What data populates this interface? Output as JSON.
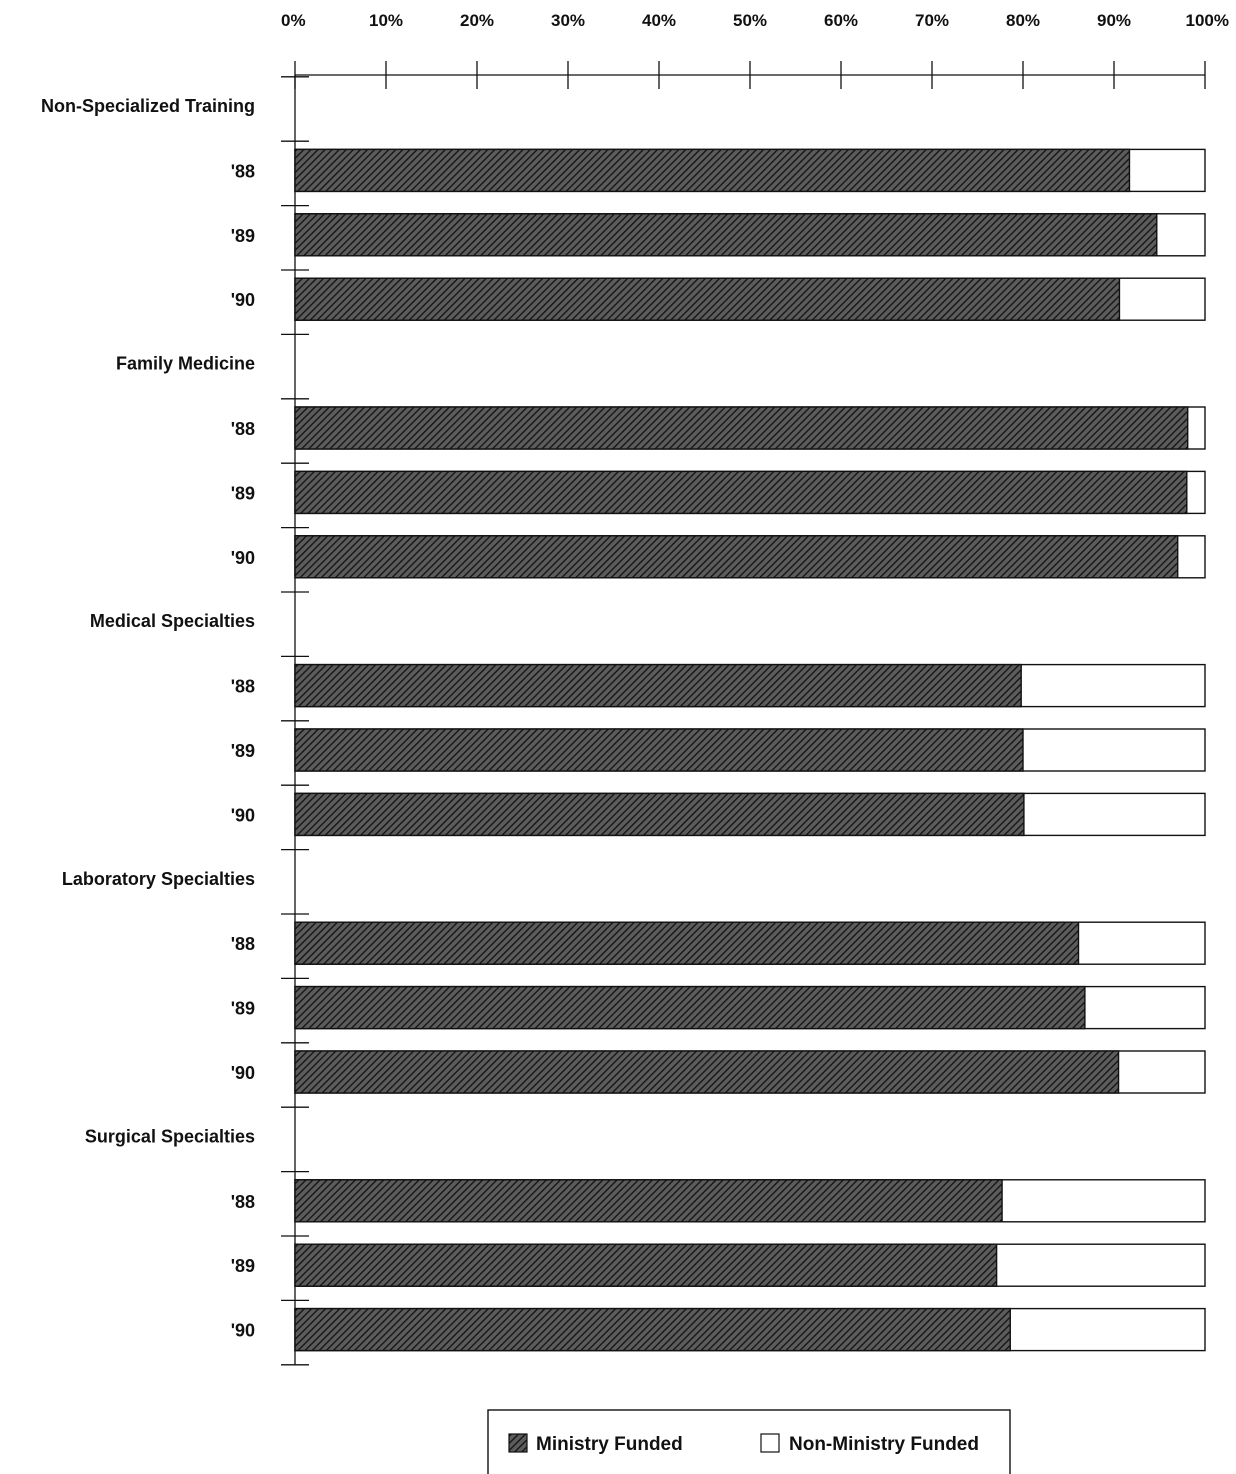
{
  "chart_data": {
    "type": "bar",
    "orientation": "horizontal",
    "stacked": true,
    "x_ticks": [
      "0%",
      "10%",
      "20%",
      "30%",
      "40%",
      "50%",
      "60%",
      "70%",
      "80%",
      "90%",
      "100%"
    ],
    "xlim": [
      0,
      100
    ],
    "grid": false,
    "legend_placement": "bottom",
    "groups": [
      {
        "name": "Non-Specialized Training",
        "years": [
          "'88",
          "'89",
          "'90"
        ],
        "ministry_funded": [
          91.7,
          94.7,
          90.6
        ]
      },
      {
        "name": "Family Medicine",
        "years": [
          "'88",
          "'89",
          "'90"
        ],
        "ministry_funded": [
          98.1,
          98.0,
          97.0
        ]
      },
      {
        "name": "Medical Specialties",
        "years": [
          "'88",
          "'89",
          "'90"
        ],
        "ministry_funded": [
          79.8,
          80.0,
          80.1
        ]
      },
      {
        "name": "Laboratory Specialties",
        "years": [
          "'88",
          "'89",
          "'90"
        ],
        "ministry_funded": [
          86.1,
          86.8,
          90.5
        ]
      },
      {
        "name": "Surgical Specialties",
        "years": [
          "'88",
          "'89",
          "'90"
        ],
        "ministry_funded": [
          77.7,
          77.1,
          78.6
        ]
      }
    ],
    "series": [
      {
        "name": "Ministry Funded",
        "pattern": "hatched",
        "color": "#222222"
      },
      {
        "name": "Non-Ministry Funded",
        "pattern": "solid",
        "color": "#ffffff"
      }
    ]
  }
}
